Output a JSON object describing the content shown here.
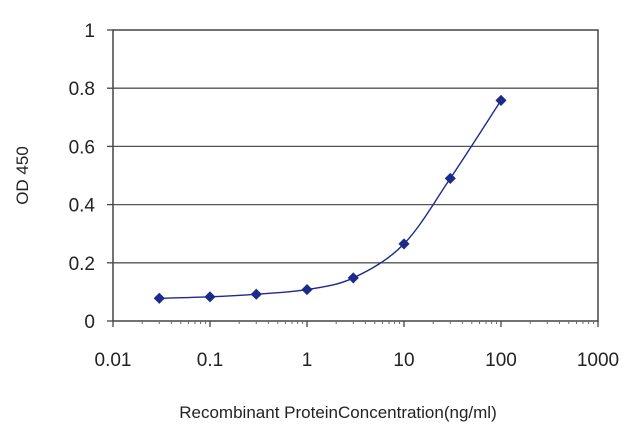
{
  "chart_data": {
    "type": "line",
    "title": "",
    "xlabel": "Recombinant ProteinConcentration(ng/ml)",
    "ylabel": "OD 450",
    "x_scale": "log",
    "xlim": [
      0.01,
      1000
    ],
    "ylim": [
      0,
      1
    ],
    "x_ticks": [
      "0.01",
      "0.1",
      "1",
      "10",
      "100",
      "1000"
    ],
    "y_ticks": [
      "0",
      "0.2",
      "0.4",
      "0.6",
      "0.8",
      "1"
    ],
    "grid": "horizontal",
    "legend": "none",
    "series": [
      {
        "color": "#1c2a8c",
        "marker": "diamond",
        "x": [
          0.03,
          0.1,
          0.3,
          1,
          3,
          10,
          30,
          100
        ],
        "y": [
          0.078,
          0.083,
          0.092,
          0.108,
          0.148,
          0.265,
          0.49,
          0.758
        ]
      }
    ]
  }
}
